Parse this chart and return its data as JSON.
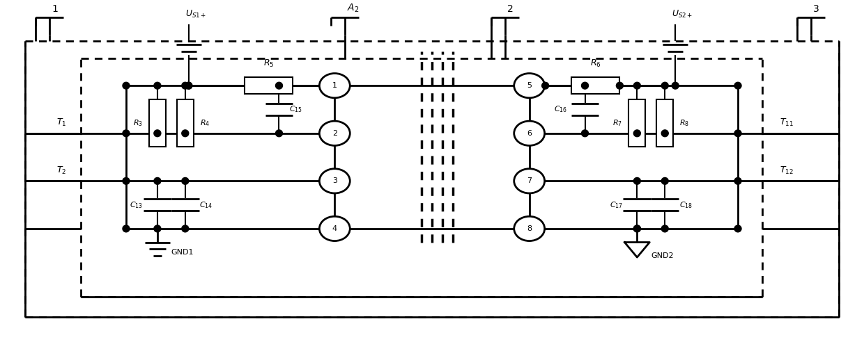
{
  "fig_width": 12.4,
  "fig_height": 4.92,
  "dpi": 100,
  "background": "#ffffff",
  "line_color": "#000000",
  "lw": 1.5,
  "lw2": 2.0
}
